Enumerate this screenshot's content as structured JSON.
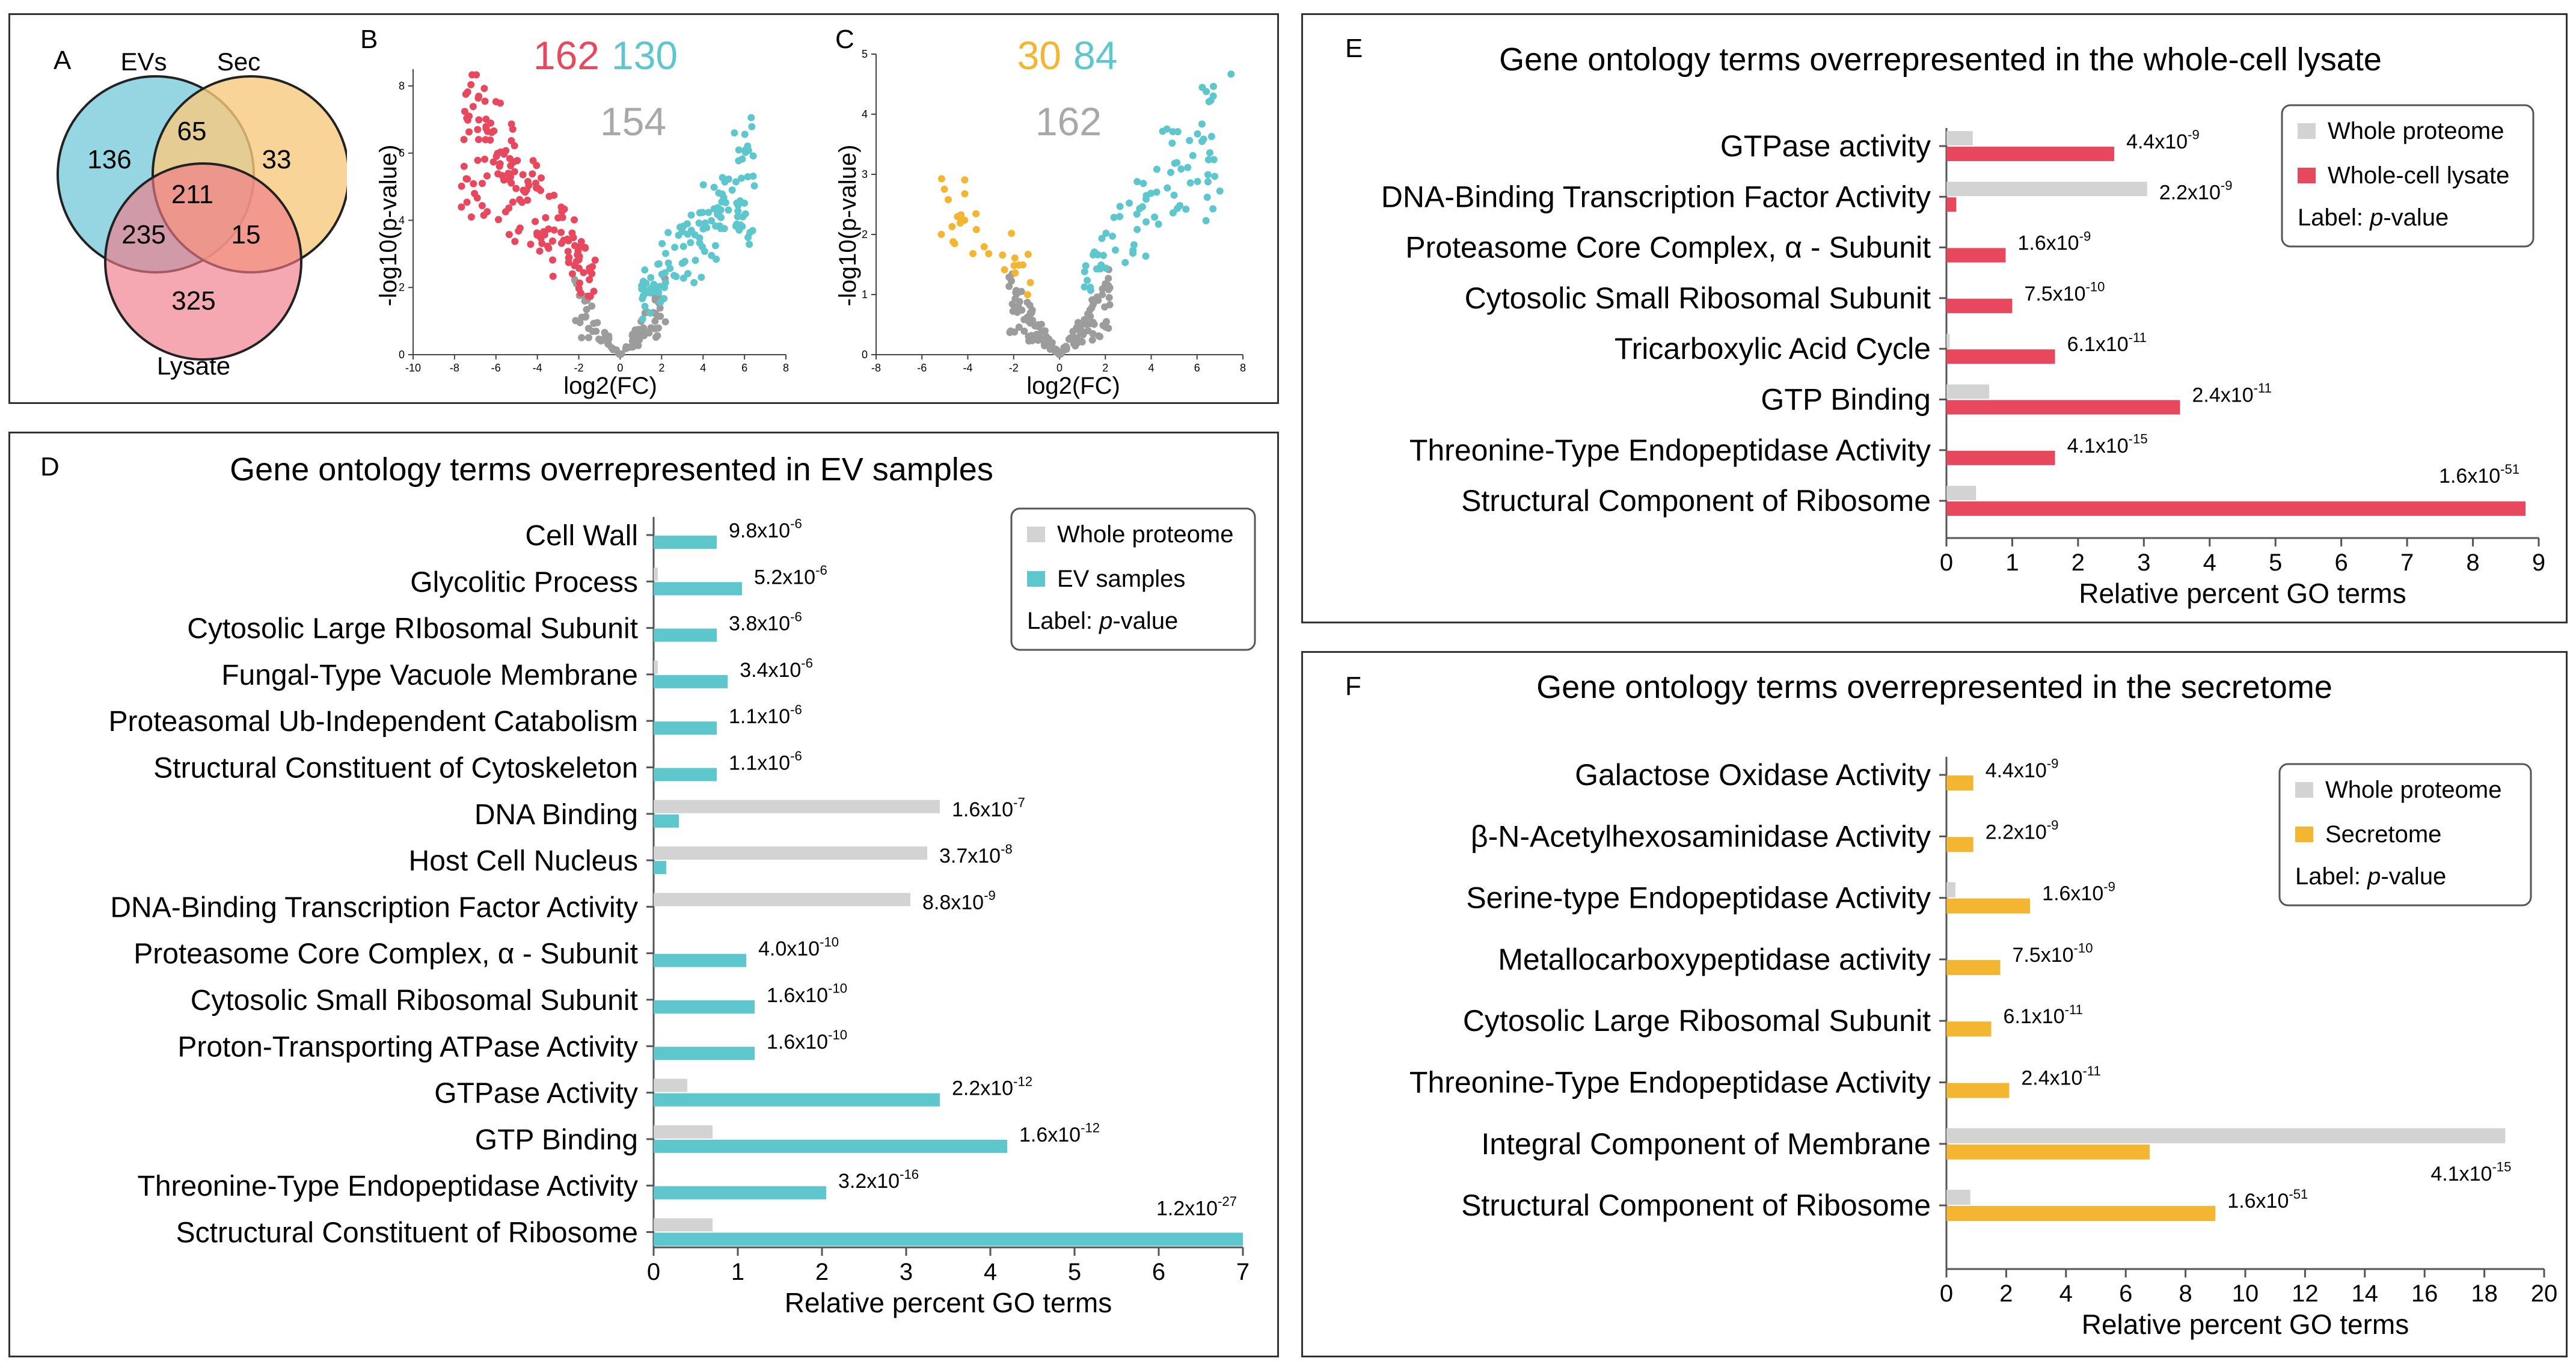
{
  "colors": {
    "grey": "#d3d3d3",
    "teal": "#5ec7ce",
    "red": "#e8485d",
    "orange": "#f4b531",
    "pointGrey": "#9c9c9c"
  },
  "panelA": {
    "letter": "A",
    "labels": {
      "evs": "EVs",
      "sec": "Sec",
      "lysate": "Lysate"
    },
    "counts": {
      "evs_only": "136",
      "evs_sec": "65",
      "sec_only": "33",
      "all": "211",
      "evs_lysate": "235",
      "sec_lysate": "15",
      "lysate_only": "325"
    }
  },
  "panelB": {
    "letter": "B",
    "counts": {
      "left": "162",
      "right": "130",
      "center": "154"
    },
    "xlabel": "log2(FC)",
    "ylabel": "-log10(p-value)",
    "xticks": [
      "-10",
      "-8",
      "-6",
      "-4",
      "-2",
      "0",
      "2",
      "4",
      "6",
      "8"
    ],
    "yticks": [
      "0",
      "2",
      "4",
      "6",
      "8"
    ]
  },
  "panelC": {
    "letter": "C",
    "counts": {
      "left": "30",
      "right": "84",
      "center": "162"
    },
    "xlabel": "log2(FC)",
    "ylabel": "-log10(p-value)",
    "xticks": [
      "-8",
      "-6",
      "-4",
      "-2",
      "0",
      "2",
      "4",
      "6",
      "8"
    ],
    "yticks": [
      "0",
      "1",
      "2",
      "3",
      "4",
      "5"
    ]
  },
  "chart_data": [
    {
      "id": "D",
      "type": "bar",
      "orientation": "horizontal",
      "title": "Gene ontology terms overrepresented in EV samples",
      "xlabel": "Relative percent GO terms",
      "xlim": [
        0,
        7
      ],
      "xticks": [
        "0",
        "1",
        "2",
        "3",
        "4",
        "5",
        "6",
        "7"
      ],
      "legend": {
        "whole": "Whole proteome",
        "sample": "EV samples",
        "note_prefix": "Label: ",
        "note_italic": "p",
        "note_suffix": "-value"
      },
      "sample_color": "#5ec7ce",
      "rows": [
        {
          "label": "Cell Wall",
          "whole": 0.0,
          "sample": 0.75,
          "pv_base": "9.8x10",
          "pv_exp": "-6"
        },
        {
          "label": "Glycolitic Process",
          "whole": 0.05,
          "sample": 1.05,
          "pv_base": "5.2x10",
          "pv_exp": "-6"
        },
        {
          "label": "Cytosolic Large RIbosomal Subunit",
          "whole": 0.0,
          "sample": 0.75,
          "pv_base": "3.8x10",
          "pv_exp": "-6"
        },
        {
          "label": "Fungal-Type Vacuole Membrane",
          "whole": 0.05,
          "sample": 0.88,
          "pv_base": "3.4x10",
          "pv_exp": "-6"
        },
        {
          "label": "Proteasomal Ub-Independent Catabolism",
          "whole": 0.0,
          "sample": 0.75,
          "pv_base": "1.1x10",
          "pv_exp": "-6"
        },
        {
          "label": "Structural Constituent of Cytoskeleton",
          "whole": 0.0,
          "sample": 0.75,
          "pv_base": "1.1x10",
          "pv_exp": "-6"
        },
        {
          "label": "DNA Binding",
          "whole": 3.4,
          "sample": 0.3,
          "pv_base": "1.6x10",
          "pv_exp": "-7"
        },
        {
          "label": "Host Cell Nucleus",
          "whole": 3.25,
          "sample": 0.15,
          "pv_base": "3.7x10",
          "pv_exp": "-8"
        },
        {
          "label": "DNA-Binding Transcription Factor Activity",
          "whole": 3.05,
          "sample": 0.0,
          "pv_base": "8.8x10",
          "pv_exp": "-9"
        },
        {
          "label": "Proteasome Core Complex, α - Subunit",
          "whole": 0.0,
          "sample": 1.1,
          "pv_base": "4.0x10",
          "pv_exp": "-10"
        },
        {
          "label": "Cytosolic Small Ribosomal Subunit",
          "whole": 0.0,
          "sample": 1.2,
          "pv_base": "1.6x10",
          "pv_exp": "-10"
        },
        {
          "label": "Proton-Transporting ATPase Activity",
          "whole": 0.0,
          "sample": 1.2,
          "pv_base": "1.6x10",
          "pv_exp": "-10"
        },
        {
          "label": "GTPase Activity",
          "whole": 0.4,
          "sample": 3.4,
          "pv_base": "2.2x10",
          "pv_exp": "-12"
        },
        {
          "label": "GTP Binding",
          "whole": 0.7,
          "sample": 4.2,
          "pv_base": "1.6x10",
          "pv_exp": "-12"
        },
        {
          "label": "Threonine-Type Endopeptidase Activity",
          "whole": 0.0,
          "sample": 2.05,
          "pv_base": "3.2x10",
          "pv_exp": "-16"
        },
        {
          "label": "Sctructural Constituent of Ribosome",
          "whole": 0.7,
          "sample": 7.0,
          "pv_base": "1.2x10",
          "pv_exp": "-27"
        }
      ]
    },
    {
      "id": "E",
      "type": "bar",
      "orientation": "horizontal",
      "title": "Gene ontology terms overrepresented in the whole-cell lysate",
      "xlabel": "Relative percent GO terms",
      "xlim": [
        0,
        9
      ],
      "xticks": [
        "0",
        "1",
        "2",
        "3",
        "4",
        "5",
        "6",
        "7",
        "8",
        "9"
      ],
      "legend": {
        "whole": "Whole proteome",
        "sample": "Whole-cell lysate",
        "note_prefix": "Label: ",
        "note_italic": "p",
        "note_suffix": "-value"
      },
      "sample_color": "#e8485d",
      "rows": [
        {
          "label": "GTPase activity",
          "whole": 0.4,
          "sample": 2.55,
          "pv_base": "4.4x10",
          "pv_exp": "-9"
        },
        {
          "label": "DNA-Binding Transcription Factor Activity",
          "whole": 3.05,
          "sample": 0.15,
          "pv_base": "2.2x10",
          "pv_exp": "-9"
        },
        {
          "label": "Proteasome Core Complex, α - Subunit",
          "whole": 0.0,
          "sample": 0.9,
          "pv_base": "1.6x10",
          "pv_exp": "-9"
        },
        {
          "label": "Cytosolic Small Ribosomal Subunit",
          "whole": 0.0,
          "sample": 1.0,
          "pv_base": "7.5x10",
          "pv_exp": "-10"
        },
        {
          "label": "Tricarboxylic Acid  Cycle",
          "whole": 0.05,
          "sample": 1.65,
          "pv_base": "6.1x10",
          "pv_exp": "-11"
        },
        {
          "label": "GTP Binding",
          "whole": 0.65,
          "sample": 3.55,
          "pv_base": "2.4x10",
          "pv_exp": "-11"
        },
        {
          "label": "Threonine-Type Endopeptidase Activity",
          "whole": 0.0,
          "sample": 1.65,
          "pv_base": "4.1x10",
          "pv_exp": "-15"
        },
        {
          "label": "Structural Component of Ribosome",
          "whole": 0.45,
          "sample": 8.8,
          "pv_base": "1.6x10",
          "pv_exp": "-51"
        }
      ]
    },
    {
      "id": "F",
      "type": "bar",
      "orientation": "horizontal",
      "title": "Gene ontology terms overrepresented in the secretome",
      "xlabel": "Relative percent GO terms",
      "xlim": [
        0,
        20
      ],
      "xticks": [
        "0",
        "2",
        "4",
        "6",
        "8",
        "10",
        "12",
        "14",
        "16",
        "18",
        "20"
      ],
      "legend": {
        "whole": "Whole proteome",
        "sample": "Secretome",
        "note_prefix": "Label: ",
        "note_italic": "p",
        "note_suffix": "-value"
      },
      "sample_color": "#f4b531",
      "rows": [
        {
          "label": "Galactose Oxidase Activity",
          "whole": 0.0,
          "sample": 0.9,
          "pv_base": "4.4x10",
          "pv_exp": "-9"
        },
        {
          "label": "β-N-Acetylhexosaminidase Activity",
          "whole": 0.0,
          "sample": 0.9,
          "pv_base": "2.2x10",
          "pv_exp": "-9"
        },
        {
          "label": "Serine-type Endopeptidase Activity",
          "whole": 0.3,
          "sample": 2.8,
          "pv_base": "1.6x10",
          "pv_exp": "-9"
        },
        {
          "label": "Metallocarboxypeptidase activity",
          "whole": 0.0,
          "sample": 1.8,
          "pv_base": "7.5x10",
          "pv_exp": "-10"
        },
        {
          "label": "Cytosolic Large Ribosomal Subunit",
          "whole": 0.0,
          "sample": 1.5,
          "pv_base": "6.1x10",
          "pv_exp": "-11"
        },
        {
          "label": "Threonine-Type Endopeptidase Activity",
          "whole": 0.0,
          "sample": 2.1,
          "pv_base": "2.4x10",
          "pv_exp": "-11"
        },
        {
          "label": "Integral Component of Membrane",
          "whole": 18.7,
          "sample": 6.8,
          "pv_base": "4.1x10",
          "pv_exp": "-15"
        },
        {
          "label": "Structural Component of Ribosome",
          "whole": 0.8,
          "sample": 9.0,
          "pv_base": "1.6x10",
          "pv_exp": "-51"
        }
      ]
    }
  ]
}
